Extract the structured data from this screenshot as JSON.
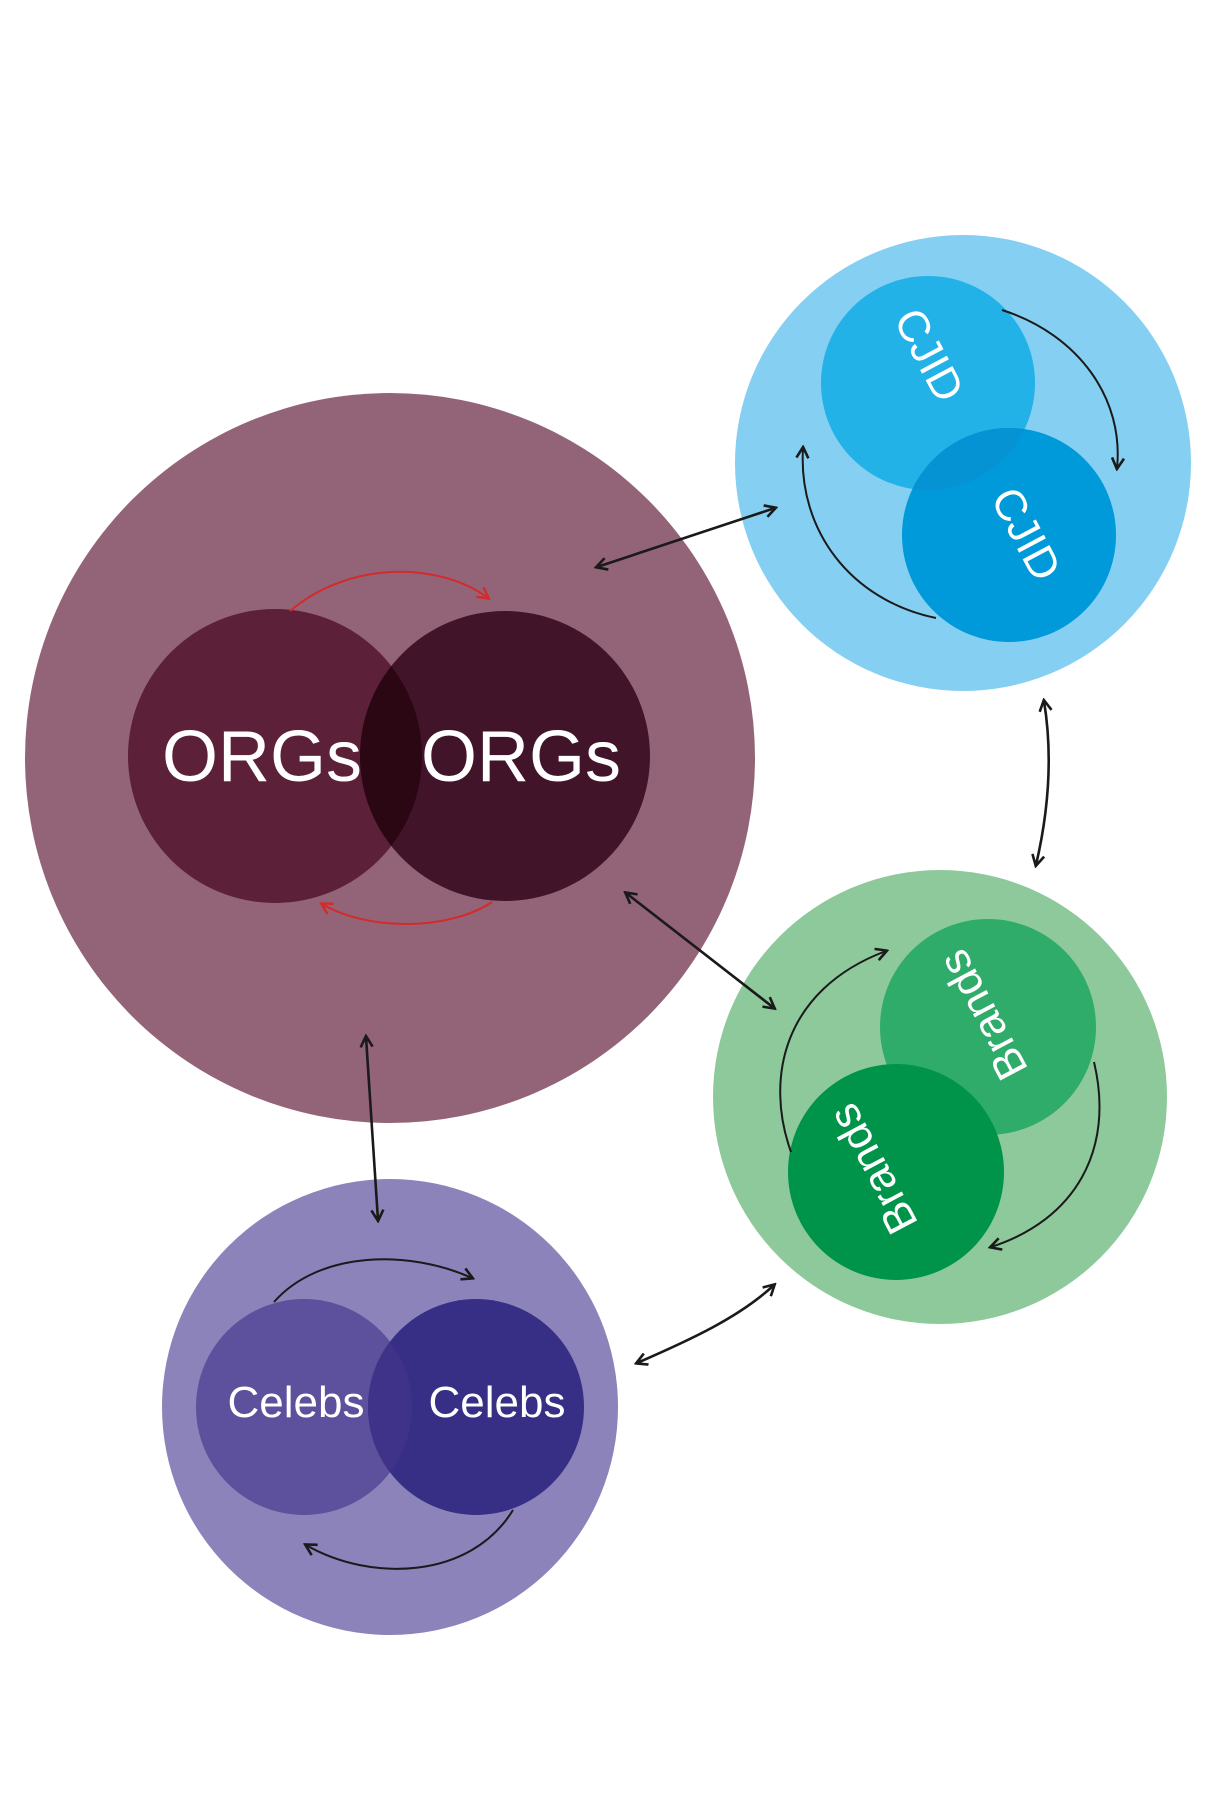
{
  "orgs": {
    "label_left": "ORGs",
    "label_right": "ORGs",
    "colors": {
      "outer": "#936477",
      "left": "#5c2039",
      "right": "#421429",
      "overlap": "#2b0613",
      "arrows": "#d42a2a"
    }
  },
  "cjid": {
    "label_top": "CJID",
    "label_bottom": "CJID",
    "colors": {
      "outer": "#85cff3",
      "top": "#22b2e8",
      "bottom": "#0099d9",
      "overlap": "#0593d4"
    }
  },
  "brands": {
    "label_top": "Brands",
    "label_bottom": "Brands",
    "colors": {
      "outer": "#8ec99b",
      "top": "#2fab6a",
      "bottom": "#00944a"
    }
  },
  "celebs": {
    "label_left": "Celebs",
    "label_right": "Celebs",
    "colors": {
      "outer": "#8c83bb",
      "left": "#5d509c",
      "right": "#372f85",
      "overlap": "#3e3389"
    }
  },
  "connector_color": "#1a1a1a"
}
